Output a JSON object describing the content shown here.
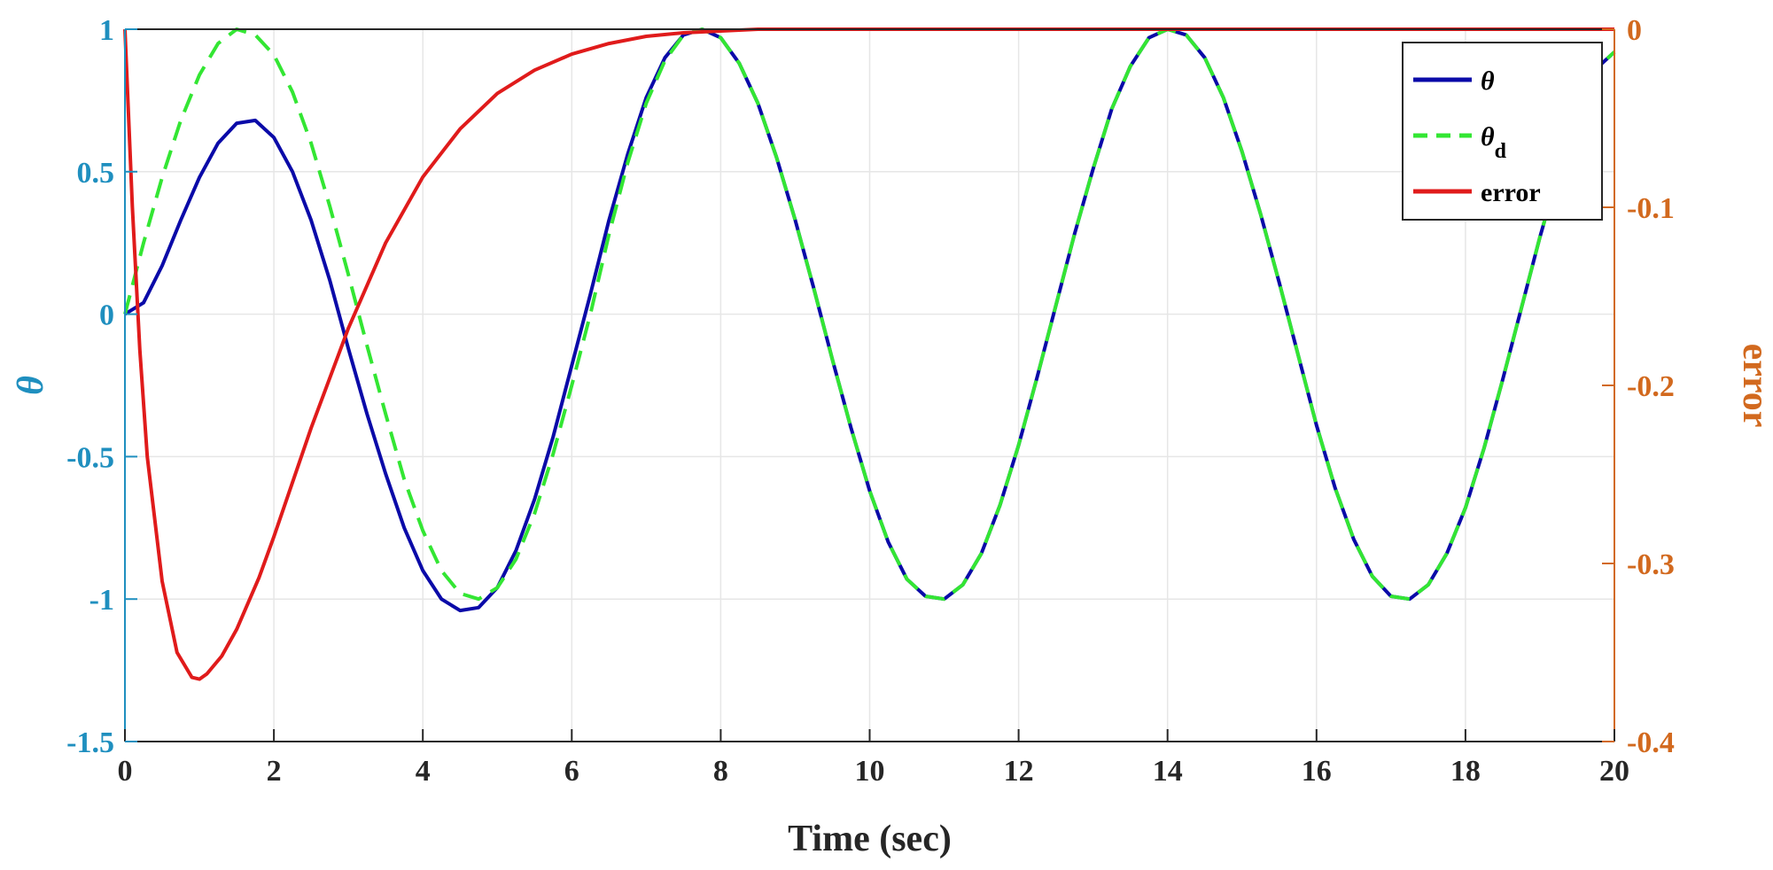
{
  "chart_data": {
    "type": "line",
    "title": "",
    "xlabel": "Time (sec)",
    "ylabel_left": "θ",
    "ylabel_right": "error",
    "xlim": [
      0,
      20
    ],
    "ylim_left": [
      -1.5,
      1
    ],
    "ylim_right": [
      -0.4,
      0
    ],
    "xticks": [
      0,
      2,
      4,
      6,
      8,
      10,
      12,
      14,
      16,
      18,
      20
    ],
    "xtick_labels": [
      "0",
      "2",
      "4",
      "6",
      "8",
      "10",
      "12",
      "14",
      "16",
      "18",
      "20"
    ],
    "yticks_left": [
      1,
      0.5,
      0,
      -0.5,
      -1,
      -1.5
    ],
    "ytick_labels_left": [
      "1",
      "0.5",
      "0",
      "-0.5",
      "-1",
      "-1.5"
    ],
    "yticks_right": [
      0,
      -0.1,
      -0.2,
      -0.3,
      -0.4
    ],
    "ytick_labels_right": [
      "0",
      "-0.1",
      "-0.2",
      "-0.3",
      "-0.4"
    ],
    "grid": true,
    "legend_position": "top-right",
    "colors": {
      "left_axis": "#1f8fbf",
      "right_axis": "#d2691e",
      "theta": "#0a0aa8",
      "theta_d": "#33e633",
      "error": "#e01b1b",
      "grid": "#e6e6e6"
    },
    "series": [
      {
        "name": "θ",
        "legend_main": "θ",
        "legend_sub": "",
        "axis": "left",
        "style": "solid",
        "x": [
          0,
          0.25,
          0.5,
          0.75,
          1.0,
          1.25,
          1.5,
          1.75,
          2.0,
          2.25,
          2.5,
          2.75,
          3.0,
          3.25,
          3.5,
          3.75,
          4.0,
          4.25,
          4.5,
          4.75,
          5.0,
          5.25,
          5.5,
          5.75,
          6.0,
          6.25,
          6.5,
          6.75,
          7.0,
          7.25,
          7.5,
          7.75,
          8.0,
          8.25,
          8.5,
          8.75,
          9.0,
          9.25,
          9.5,
          9.75,
          10.0,
          10.25,
          10.5,
          10.75,
          11.0,
          11.25,
          11.5,
          11.75,
          12.0,
          12.25,
          12.5,
          12.75,
          13.0,
          13.25,
          13.5,
          13.75,
          14.0,
          14.25,
          14.5,
          14.75,
          15.0,
          15.25,
          15.5,
          15.75,
          16.0,
          16.25,
          16.5,
          16.75,
          17.0,
          17.25,
          17.5,
          17.75,
          18.0,
          18.25,
          18.5,
          18.75,
          19.0,
          19.25,
          19.5,
          19.75,
          20.0
        ],
        "y": [
          0.0,
          0.04,
          0.17,
          0.33,
          0.48,
          0.6,
          0.67,
          0.68,
          0.62,
          0.5,
          0.33,
          0.12,
          -0.12,
          -0.35,
          -0.56,
          -0.75,
          -0.9,
          -1.0,
          -1.04,
          -1.03,
          -0.96,
          -0.83,
          -0.65,
          -0.43,
          -0.18,
          0.07,
          0.33,
          0.56,
          0.76,
          0.9,
          0.98,
          1.0,
          0.97,
          0.88,
          0.74,
          0.55,
          0.33,
          0.09,
          -0.16,
          -0.4,
          -0.62,
          -0.8,
          -0.93,
          -0.99,
          -1.0,
          -0.95,
          -0.84,
          -0.67,
          -0.46,
          -0.22,
          0.03,
          0.28,
          0.51,
          0.72,
          0.87,
          0.97,
          1.0,
          0.98,
          0.9,
          0.76,
          0.57,
          0.35,
          0.11,
          -0.14,
          -0.39,
          -0.61,
          -0.79,
          -0.92,
          -0.99,
          -1.0,
          -0.95,
          -0.84,
          -0.68,
          -0.47,
          -0.23,
          0.02,
          0.27,
          0.5,
          0.7,
          0.86,
          0.92
        ]
      },
      {
        "name": "θd",
        "legend_main": "θ",
        "legend_sub": "d",
        "axis": "left",
        "style": "dashed",
        "x": [
          0,
          0.25,
          0.5,
          0.75,
          1.0,
          1.25,
          1.5,
          1.75,
          2.0,
          2.25,
          2.5,
          2.75,
          3.0,
          3.25,
          3.5,
          3.75,
          4.0,
          4.25,
          4.5,
          4.75,
          5.0,
          5.25,
          5.5,
          5.75,
          6.0,
          6.25,
          6.5,
          6.75,
          7.0,
          7.25,
          7.5,
          7.75,
          8.0,
          8.25,
          8.5,
          8.75,
          9.0,
          9.25,
          9.5,
          9.75,
          10.0,
          10.25,
          10.5,
          10.75,
          11.0,
          11.25,
          11.5,
          11.75,
          12.0,
          12.25,
          12.5,
          12.75,
          13.0,
          13.25,
          13.5,
          13.75,
          14.0,
          14.25,
          14.5,
          14.75,
          15.0,
          15.25,
          15.5,
          15.75,
          16.0,
          16.25,
          16.5,
          16.75,
          17.0,
          17.25,
          17.5,
          17.75,
          18.0,
          18.25,
          18.5,
          18.75,
          19.0,
          19.25,
          19.5,
          19.75,
          20.0
        ],
        "y": [
          0.0,
          0.25,
          0.48,
          0.68,
          0.84,
          0.95,
          1.0,
          0.98,
          0.91,
          0.78,
          0.6,
          0.38,
          0.14,
          -0.11,
          -0.35,
          -0.58,
          -0.76,
          -0.9,
          -0.98,
          -1.0,
          -0.96,
          -0.86,
          -0.7,
          -0.49,
          -0.25,
          0.0,
          0.28,
          0.53,
          0.74,
          0.89,
          0.98,
          1.0,
          0.97,
          0.88,
          0.74,
          0.55,
          0.33,
          0.09,
          -0.16,
          -0.4,
          -0.62,
          -0.8,
          -0.93,
          -0.99,
          -1.0,
          -0.95,
          -0.84,
          -0.67,
          -0.46,
          -0.22,
          0.03,
          0.28,
          0.51,
          0.72,
          0.87,
          0.97,
          1.0,
          0.98,
          0.9,
          0.76,
          0.57,
          0.35,
          0.11,
          -0.14,
          -0.39,
          -0.61,
          -0.79,
          -0.92,
          -0.99,
          -1.0,
          -0.95,
          -0.84,
          -0.68,
          -0.47,
          -0.23,
          0.02,
          0.27,
          0.5,
          0.7,
          0.86,
          0.92
        ]
      },
      {
        "name": "error",
        "legend_main": "error",
        "legend_sub": "",
        "axis": "right",
        "style": "solid",
        "x": [
          0,
          0.1,
          0.2,
          0.3,
          0.5,
          0.7,
          0.9,
          1.0,
          1.1,
          1.3,
          1.5,
          1.8,
          2.0,
          2.5,
          3.0,
          3.5,
          4.0,
          4.5,
          5.0,
          5.5,
          6.0,
          6.5,
          7.0,
          7.5,
          8.0,
          8.5,
          9.0,
          10.0,
          12.0,
          14.0,
          16.0,
          18.0,
          20.0
        ],
        "y": [
          0.0,
          -0.1,
          -0.18,
          -0.24,
          -0.31,
          -0.35,
          -0.364,
          -0.365,
          -0.362,
          -0.352,
          -0.337,
          -0.308,
          -0.285,
          -0.224,
          -0.168,
          -0.12,
          -0.083,
          -0.056,
          -0.036,
          -0.023,
          -0.014,
          -0.008,
          -0.004,
          -0.002,
          -0.001,
          0.0,
          0.0,
          0.0,
          0.0,
          0.0,
          0.0,
          0.0,
          0.0
        ]
      }
    ]
  }
}
